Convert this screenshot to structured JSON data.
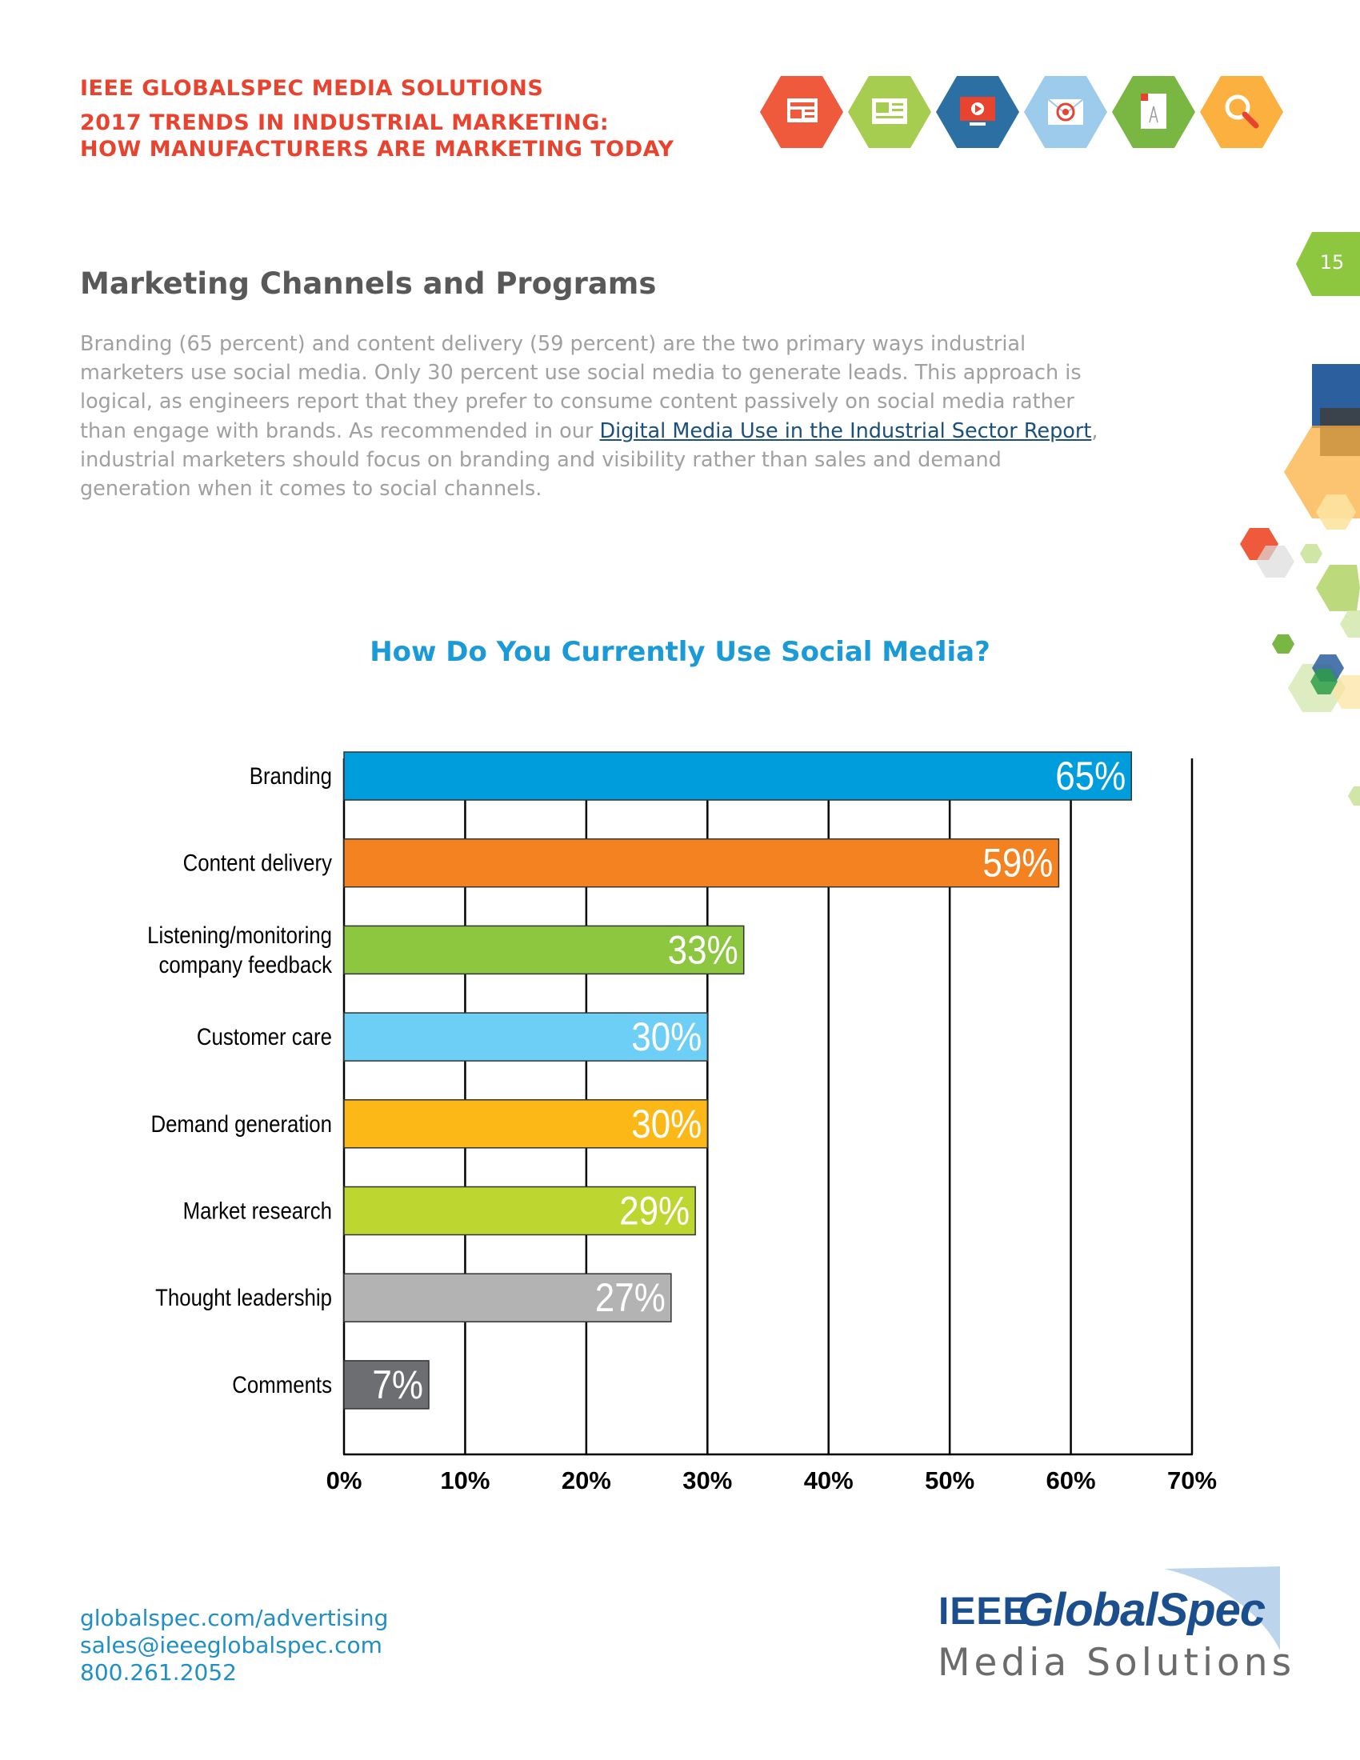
{
  "header": {
    "line1": "IEEE GLOBALSPEC MEDIA SOLUTIONS",
    "line2": "2017 TRENDS IN INDUSTRIAL MARKETING:",
    "line3": "HOW MANUFACTURERS ARE MARKETING TODAY",
    "icons": [
      {
        "name": "newsletter-icon",
        "color": "#ef5a3c"
      },
      {
        "name": "article-icon",
        "color": "#a6cd4f"
      },
      {
        "name": "video-screen-icon",
        "color": "#2c6fa3"
      },
      {
        "name": "email-target-icon",
        "color": "#9ccbeb"
      },
      {
        "name": "document-icon",
        "color": "#7ab642"
      },
      {
        "name": "search-icon",
        "color": "#fbb040"
      }
    ]
  },
  "page_number": "15",
  "section": {
    "title": "Marketing Channels and Programs",
    "para_part1": "Branding (65 percent) and content delivery (59 percent) are the two primary ways industrial marketers use social media. Only 30 percent use social media to generate leads. This approach is logical, as engineers report that they prefer to consume content passively on social media rather than engage with brands. As recommended in our ",
    "link_text": "Digital Media Use in the Industrial Sector Report",
    "para_part2": ", industrial marketers should focus on branding and visibility rather than sales and demand generation when it comes to social channels."
  },
  "chart_data": {
    "type": "bar",
    "orientation": "horizontal",
    "title": "How Do You Currently Use Social Media?",
    "categories": [
      "Branding",
      "Content delivery",
      "Listening/monitoring company feedback",
      "Customer care",
      "Demand generation",
      "Market research",
      "Thought leadership",
      "Comments"
    ],
    "category_lines": [
      [
        "Branding"
      ],
      [
        "Content delivery"
      ],
      [
        "Listening/monitoring",
        "company feedback"
      ],
      [
        "Customer care"
      ],
      [
        "Demand generation"
      ],
      [
        "Market research"
      ],
      [
        "Thought leadership"
      ],
      [
        "Comments"
      ]
    ],
    "values": [
      65,
      59,
      33,
      30,
      30,
      29,
      27,
      7
    ],
    "value_labels": [
      "65%",
      "59%",
      "33%",
      "30%",
      "30%",
      "29%",
      "27%",
      "7%"
    ],
    "colors": [
      "#009ddc",
      "#f58220",
      "#8dc63f",
      "#6dcff6",
      "#fbb816",
      "#bed630",
      "#b3b3b3",
      "#6d6e71"
    ],
    "xlim": [
      0,
      70
    ],
    "xticks": [
      0,
      10,
      20,
      30,
      40,
      50,
      60,
      70
    ],
    "xtick_labels": [
      "0%",
      "10%",
      "20%",
      "30%",
      "40%",
      "50%",
      "60%",
      "70%"
    ],
    "xlabel": "",
    "ylabel": "",
    "grid": true
  },
  "footer": {
    "website": "globalspec.com/advertising",
    "email": "sales@ieeeglobalspec.com",
    "phone": "800.261.2052"
  },
  "logo": {
    "ieee": "IEEE",
    "globalspec": "GlobalSpec",
    "media_solutions": "Media Solutions"
  }
}
